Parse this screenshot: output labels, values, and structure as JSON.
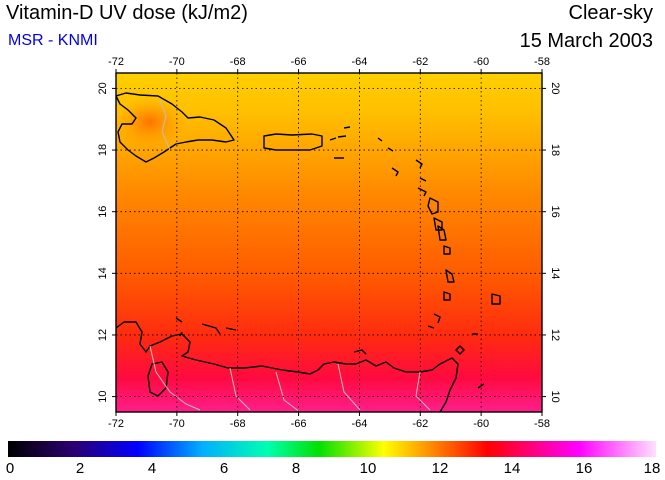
{
  "header": {
    "title": "Vitamin-D UV dose (kJ/m2)",
    "source": "MSR - KNMI",
    "sky_condition": "Clear-sky",
    "date": "15 March 2003"
  },
  "map": {
    "lon_range": [
      -72,
      -58
    ],
    "lat_range": [
      9.5,
      20.5
    ],
    "lon_ticks": [
      -72,
      -70,
      -68,
      -66,
      -64,
      -62,
      -60,
      -58
    ],
    "lat_ticks": [
      10,
      12,
      14,
      16,
      18,
      20
    ],
    "lon_tick_labels": [
      "-72",
      "-70",
      "-68",
      "-66",
      "-64",
      "-62",
      "-60",
      "-58"
    ],
    "lat_tick_labels": [
      "10",
      "12",
      "14",
      "16",
      "18",
      "20"
    ],
    "grid": "dotted",
    "region": "Caribbean Sea: Hispaniola, Puerto Rico, Lesser Antilles, Venezuela coast"
  },
  "colorbar": {
    "min": 0,
    "max": 18,
    "tick_values": [
      0,
      2,
      4,
      6,
      8,
      10,
      12,
      14,
      16,
      18
    ],
    "tick_labels": [
      "0",
      "2",
      "4",
      "6",
      "8",
      "10",
      "12",
      "14",
      "16",
      "18"
    ],
    "colors": [
      "#000000",
      "#2b0070",
      "#0000ff",
      "#00b0ff",
      "#00ffb0",
      "#00e000",
      "#ffff00",
      "#ff8000",
      "#ff0000",
      "#ff00ff",
      "#ffe0ff"
    ]
  }
}
